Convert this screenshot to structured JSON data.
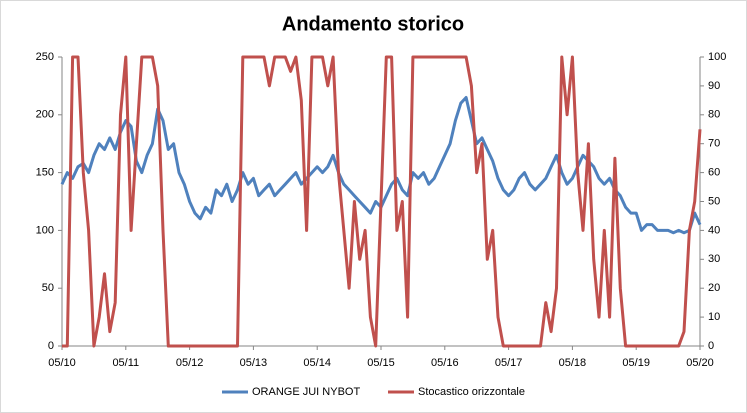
{
  "chart_data": {
    "type": "line",
    "title": "Andamento storico",
    "categories": [
      "05/10",
      null,
      null,
      null,
      null,
      null,
      null,
      null,
      null,
      null,
      null,
      null,
      "05/11",
      null,
      null,
      null,
      null,
      null,
      null,
      null,
      null,
      null,
      null,
      null,
      "05/12",
      null,
      null,
      null,
      null,
      null,
      null,
      null,
      null,
      null,
      null,
      null,
      "05/13",
      null,
      null,
      null,
      null,
      null,
      null,
      null,
      null,
      null,
      null,
      null,
      "05/14",
      null,
      null,
      null,
      null,
      null,
      null,
      null,
      null,
      null,
      null,
      null,
      "05/15",
      null,
      null,
      null,
      null,
      null,
      null,
      null,
      null,
      null,
      null,
      null,
      "05/16",
      null,
      null,
      null,
      null,
      null,
      null,
      null,
      null,
      null,
      null,
      null,
      "05/17",
      null,
      null,
      null,
      null,
      null,
      null,
      null,
      null,
      null,
      null,
      null,
      "05/18",
      null,
      null,
      null,
      null,
      null,
      null,
      null,
      null,
      null,
      null,
      null,
      "05/19",
      null,
      null,
      null,
      null,
      null,
      null,
      null,
      null,
      null,
      null,
      null,
      "05/20"
    ],
    "series": [
      {
        "name": "ORANGE JUI NYBOT",
        "color": "#4f81bd",
        "axis": "y",
        "values": [
          140,
          150,
          145,
          155,
          158,
          150,
          165,
          175,
          170,
          180,
          170,
          185,
          195,
          190,
          160,
          150,
          165,
          175,
          205,
          195,
          170,
          175,
          150,
          140,
          125,
          115,
          110,
          120,
          115,
          135,
          130,
          140,
          125,
          135,
          150,
          140,
          145,
          130,
          135,
          140,
          130,
          135,
          140,
          145,
          150,
          140,
          145,
          150,
          155,
          150,
          155,
          165,
          150,
          140,
          135,
          130,
          125,
          120,
          115,
          125,
          120,
          130,
          140,
          145,
          135,
          130,
          150,
          145,
          150,
          140,
          145,
          155,
          165,
          175,
          195,
          210,
          215,
          195,
          175,
          180,
          170,
          160,
          145,
          135,
          130,
          135,
          145,
          150,
          140,
          135,
          140,
          145,
          155,
          165,
          150,
          140,
          145,
          155,
          165,
          160,
          155,
          145,
          140,
          145,
          135,
          130,
          120,
          115,
          115,
          100,
          105,
          105,
          100,
          100,
          100,
          98,
          100,
          98,
          100,
          115,
          105
        ]
      },
      {
        "name": "Stocastico orizzontale",
        "color": "#c0504d",
        "axis": "y2",
        "values": [
          0,
          0,
          100,
          100,
          60,
          40,
          0,
          10,
          25,
          5,
          15,
          80,
          100,
          40,
          70,
          100,
          100,
          100,
          90,
          40,
          0,
          0,
          0,
          0,
          0,
          0,
          0,
          0,
          0,
          0,
          0,
          0,
          0,
          0,
          100,
          100,
          100,
          100,
          100,
          90,
          100,
          100,
          100,
          95,
          100,
          85,
          40,
          100,
          100,
          100,
          90,
          100,
          60,
          40,
          20,
          50,
          30,
          40,
          10,
          0,
          50,
          100,
          100,
          40,
          50,
          10,
          100,
          100,
          100,
          100,
          100,
          100,
          100,
          100,
          100,
          100,
          100,
          90,
          60,
          70,
          30,
          40,
          10,
          0,
          0,
          0,
          0,
          0,
          0,
          0,
          0,
          15,
          5,
          20,
          100,
          80,
          100,
          60,
          40,
          70,
          30,
          10,
          40,
          10,
          65,
          20,
          0,
          0,
          0,
          0,
          0,
          0,
          0,
          0,
          0,
          0,
          0,
          5,
          40,
          50,
          75
        ]
      }
    ],
    "ylim": [
      0,
      250
    ],
    "yticks": [
      0,
      50,
      100,
      150,
      200,
      250
    ],
    "y2lim": [
      0,
      100
    ],
    "y2ticks": [
      0,
      10,
      20,
      30,
      40,
      50,
      60,
      70,
      80,
      90,
      100
    ],
    "grid": false,
    "legend": "bottom"
  }
}
